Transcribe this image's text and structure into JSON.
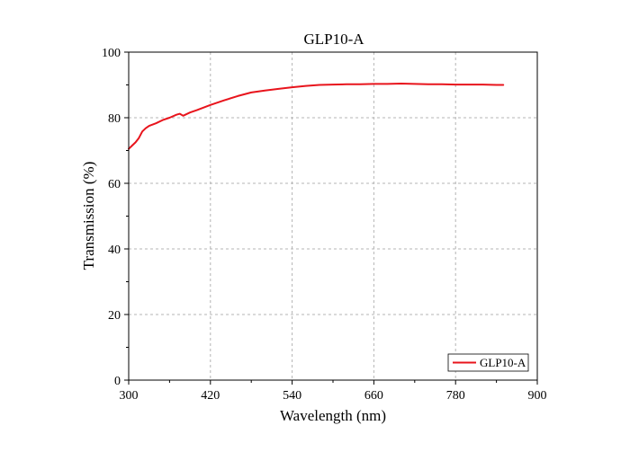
{
  "chart_data": {
    "type": "line",
    "title": "GLP10-A",
    "xlabel": "Wavelength (nm)",
    "ylabel": "Transmission (%)",
    "xlim": [
      300,
      900
    ],
    "ylim": [
      0,
      100
    ],
    "x_ticks": [
      300,
      420,
      540,
      660,
      780,
      900
    ],
    "y_ticks": [
      0,
      20,
      40,
      60,
      80,
      100
    ],
    "grid": true,
    "legend_position": "bottom-right",
    "series": [
      {
        "name": "GLP10-A",
        "color": "#e8141c",
        "x": [
          300,
          305,
          310,
          315,
          320,
          325,
          330,
          340,
          350,
          360,
          370,
          375,
          380,
          390,
          400,
          420,
          440,
          460,
          480,
          500,
          520,
          540,
          560,
          580,
          600,
          620,
          640,
          660,
          680,
          700,
          720,
          740,
          760,
          780,
          800,
          820,
          840,
          850
        ],
        "y": [
          70.5,
          71.5,
          72.5,
          73.8,
          75.8,
          76.8,
          77.5,
          78.3,
          79.3,
          80.0,
          80.9,
          81.2,
          80.6,
          81.6,
          82.3,
          83.9,
          85.3,
          86.6,
          87.7,
          88.3,
          88.8,
          89.3,
          89.7,
          90.0,
          90.1,
          90.2,
          90.2,
          90.3,
          90.3,
          90.4,
          90.3,
          90.2,
          90.2,
          90.1,
          90.1,
          90.1,
          90.0,
          90.0
        ]
      }
    ]
  }
}
